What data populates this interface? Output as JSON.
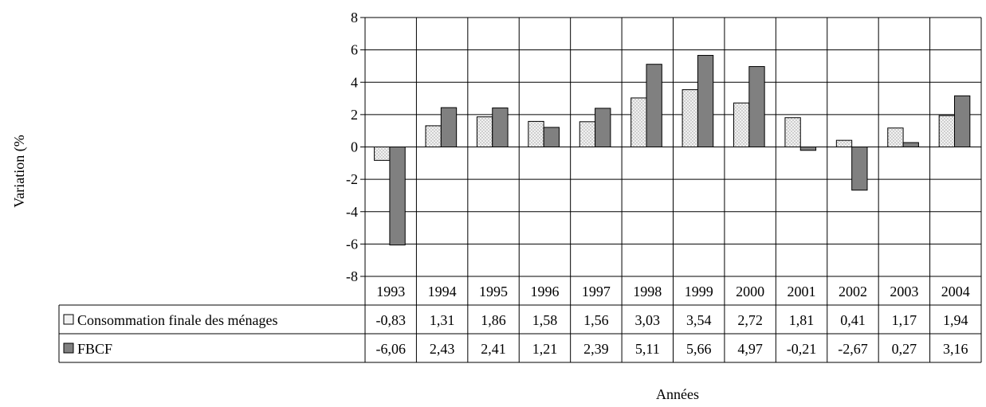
{
  "chart_data": {
    "type": "bar",
    "title": "",
    "ylabel": "Variation (%",
    "xlabel": "Années",
    "ylim": [
      -8,
      8
    ],
    "yticks": [
      "8",
      "6",
      "4",
      "2",
      "0",
      "-2",
      "-4",
      "-6",
      "-8"
    ],
    "grid": true,
    "legend": "table",
    "categories": [
      "1993",
      "1994",
      "1995",
      "1996",
      "1997",
      "1998",
      "1999",
      "2000",
      "2001",
      "2002",
      "2003",
      "2004"
    ],
    "series": [
      {
        "name": "Consommation finale des ménages",
        "color": "#e6e6e6",
        "pattern": "dotted",
        "values": [
          -0.83,
          1.31,
          1.86,
          1.58,
          1.56,
          3.03,
          3.54,
          2.72,
          1.81,
          0.41,
          1.17,
          1.94
        ],
        "labels": [
          "-0,83",
          "1,31",
          "1,86",
          "1,58",
          "1,56",
          "3,03",
          "3,54",
          "2,72",
          "1,81",
          "0,41",
          "1,17",
          "1,94"
        ]
      },
      {
        "name": "FBCF",
        "color": "#808080",
        "values": [
          -6.06,
          2.43,
          2.41,
          1.21,
          2.39,
          5.11,
          5.66,
          4.97,
          -0.21,
          -2.67,
          0.27,
          3.16
        ],
        "labels": [
          "-6,06",
          "2,43",
          "2,41",
          "1,21",
          "2,39",
          "5,11",
          "5,66",
          "4,97",
          "-0,21",
          "-2,67",
          "0,27",
          "3,16"
        ]
      }
    ]
  }
}
